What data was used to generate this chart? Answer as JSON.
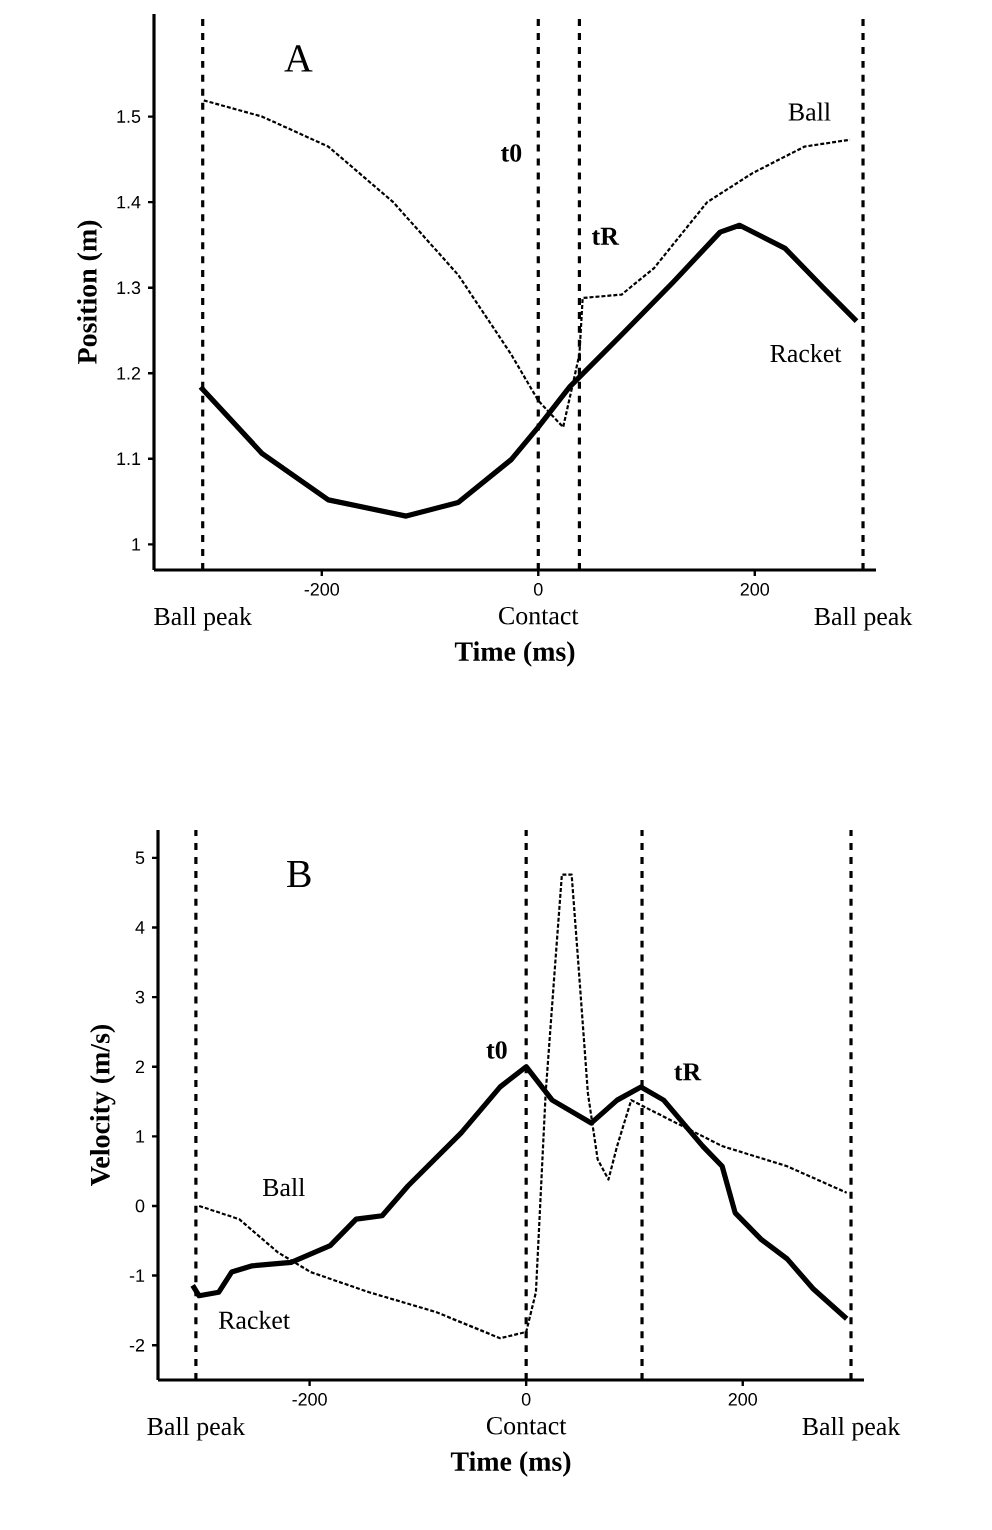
{
  "chart_data": [
    {
      "type": "line",
      "title": "A",
      "xlabel": "Time (ms)",
      "ylabel": "Position (m)",
      "xlim": [
        -355,
        312
      ],
      "ylim": [
        0.97,
        1.62
      ],
      "xticks": [
        -200,
        0,
        200
      ],
      "yticks": [
        1,
        1.1,
        1.2,
        1.3,
        1.4,
        1.5
      ],
      "series": [
        {
          "name": "Ball",
          "color": "#000000",
          "line_style": "dashed",
          "x": [
            -309,
            -255,
            -194,
            -134,
            -74,
            -25,
            0,
            11,
            23,
            38,
            41,
            77,
            107,
            156,
            198,
            246,
            288
          ],
          "values": [
            1.519,
            1.5,
            1.465,
            1.4,
            1.315,
            1.222,
            1.168,
            1.153,
            1.137,
            1.222,
            1.288,
            1.292,
            1.323,
            1.4,
            1.434,
            1.465,
            1.473
          ]
        },
        {
          "name": "Racket",
          "color": "#000000",
          "line_style": "solid",
          "x": [
            -312,
            -255,
            -194,
            -122,
            -74,
            -25,
            0,
            29,
            77,
            125,
            168,
            186,
            228,
            264,
            294
          ],
          "values": [
            1.184,
            1.106,
            1.052,
            1.033,
            1.049,
            1.099,
            1.137,
            1.184,
            1.245,
            1.307,
            1.365,
            1.373,
            1.346,
            1.299,
            1.261
          ]
        }
      ],
      "ref_lines": [
        {
          "axis": "x",
          "value": -310,
          "label": "Ball peak",
          "line_style": "dashed"
        },
        {
          "axis": "x",
          "value": 0,
          "label": "Contact",
          "line_style": "dashed"
        },
        {
          "axis": "x",
          "value": 38,
          "line_style": "dashed"
        },
        {
          "axis": "x",
          "value": 300,
          "label": "Ball peak",
          "line_style": "dashed"
        }
      ],
      "annotations": [
        "t0",
        "tR"
      ]
    },
    {
      "type": "line",
      "title": "B",
      "xlabel": "Time (ms)",
      "ylabel": "Velocity (m/s)",
      "xlim": [
        -340,
        312
      ],
      "ylim": [
        -2.5,
        5.4
      ],
      "xticks": [
        -200,
        0,
        200
      ],
      "yticks": [
        -2,
        -1,
        0,
        1,
        2,
        3,
        4,
        5
      ],
      "series": [
        {
          "name": "Ball",
          "color": "#000000",
          "line_style": "dashed",
          "x": [
            -302,
            -265,
            -229,
            -199,
            -145,
            -84,
            -24,
            0,
            9,
            12,
            18,
            27,
            33,
            42,
            48,
            57,
            66,
            76,
            84,
            97,
            121,
            181,
            241,
            296
          ],
          "values": [
            0.0,
            -0.19,
            -0.67,
            -0.95,
            -1.24,
            -1.52,
            -1.9,
            -1.81,
            -1.24,
            -0.29,
            1.62,
            3.52,
            4.76,
            4.76,
            3.52,
            1.62,
            0.67,
            0.38,
            0.86,
            1.52,
            1.33,
            0.86,
            0.57,
            0.19
          ]
        },
        {
          "name": "Racket",
          "color": "#000000",
          "line_style": "solid",
          "x": [
            -308,
            -302,
            -284,
            -272,
            -253,
            -217,
            -181,
            -157,
            -133,
            -109,
            -60,
            -24,
            0,
            24,
            60,
            84,
            106,
            127,
            163,
            181,
            193,
            217,
            241,
            265,
            296
          ],
          "values": [
            -1.14,
            -1.29,
            -1.24,
            -0.95,
            -0.86,
            -0.81,
            -0.57,
            -0.19,
            -0.14,
            0.29,
            1.05,
            1.71,
            2.0,
            1.52,
            1.19,
            1.52,
            1.71,
            1.52,
            0.86,
            0.57,
            -0.1,
            -0.48,
            -0.76,
            -1.19,
            -1.62
          ]
        }
      ],
      "ref_lines": [
        {
          "axis": "x",
          "value": -305,
          "label": "Ball peak",
          "line_style": "dashed"
        },
        {
          "axis": "x",
          "value": 0,
          "label": "Contact",
          "line_style": "dashed"
        },
        {
          "axis": "x",
          "value": 107,
          "line_style": "dashed"
        },
        {
          "axis": "x",
          "value": 300,
          "label": "Ball peak",
          "line_style": "dashed"
        }
      ],
      "annotations": [
        "t0",
        "tR"
      ]
    }
  ]
}
